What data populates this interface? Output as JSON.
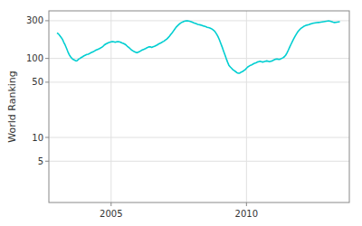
{
  "chart_data": {
    "type": "line",
    "ylabel": "World Ranking",
    "color": "#00CED1",
    "log": "y",
    "grid": true,
    "xlim": [
      2002.7,
      2013.8
    ],
    "xticks": [
      2005,
      2010
    ],
    "ylim": [
      1.5,
      400
    ],
    "yticks": [
      5,
      10,
      50,
      100,
      300
    ],
    "x": [
      2003.0,
      2003.05,
      2003.1,
      2003.15,
      2003.2,
      2003.25,
      2003.3,
      2003.35,
      2003.4,
      2003.45,
      2003.5,
      2003.55,
      2003.6,
      2003.65,
      2003.7,
      2003.75,
      2003.8,
      2003.85,
      2003.9,
      2003.95,
      2004.0,
      2004.05,
      2004.1,
      2004.15,
      2004.2,
      2004.25,
      2004.3,
      2004.35,
      2004.4,
      2004.45,
      2004.5,
      2004.55,
      2004.6,
      2004.65,
      2004.7,
      2004.75,
      2004.8,
      2004.85,
      2004.9,
      2004.95,
      2005.0,
      2005.05,
      2005.1,
      2005.15,
      2005.2,
      2005.25,
      2005.3,
      2005.35,
      2005.4,
      2005.45,
      2005.5,
      2005.55,
      2005.6,
      2005.65,
      2005.7,
      2005.75,
      2005.8,
      2005.85,
      2005.9,
      2005.95,
      2006.0,
      2006.05,
      2006.1,
      2006.15,
      2006.2,
      2006.25,
      2006.3,
      2006.35,
      2006.4,
      2006.45,
      2006.5,
      2006.55,
      2006.6,
      2006.65,
      2006.7,
      2006.75,
      2006.8,
      2006.85,
      2006.9,
      2006.95,
      2007.0,
      2007.05,
      2007.1,
      2007.15,
      2007.2,
      2007.25,
      2007.3,
      2007.35,
      2007.4,
      2007.45,
      2007.5,
      2007.55,
      2007.6,
      2007.65,
      2007.7,
      2007.75,
      2007.8,
      2007.85,
      2007.9,
      2007.95,
      2008.0,
      2008.05,
      2008.1,
      2008.15,
      2008.2,
      2008.25,
      2008.3,
      2008.35,
      2008.4,
      2008.45,
      2008.5,
      2008.55,
      2008.6,
      2008.65,
      2008.7,
      2008.75,
      2008.8,
      2008.85,
      2008.9,
      2008.95,
      2009.0,
      2009.05,
      2009.1,
      2009.15,
      2009.2,
      2009.25,
      2009.3,
      2009.35,
      2009.4,
      2009.45,
      2009.5,
      2009.55,
      2009.6,
      2009.65,
      2009.7,
      2009.75,
      2009.8,
      2009.85,
      2009.9,
      2009.95,
      2010.0,
      2010.05,
      2010.1,
      2010.15,
      2010.2,
      2010.25,
      2010.3,
      2010.35,
      2010.4,
      2010.45,
      2010.5,
      2010.55,
      2010.6,
      2010.65,
      2010.7,
      2010.75,
      2010.8,
      2010.85,
      2010.9,
      2010.95,
      2011.0,
      2011.05,
      2011.1,
      2011.15,
      2011.2,
      2011.25,
      2011.3,
      2011.35,
      2011.4,
      2011.45,
      2011.5,
      2011.55,
      2011.6,
      2011.65,
      2011.7,
      2011.75,
      2011.8,
      2011.85,
      2011.9,
      2011.95,
      2012.0,
      2012.05,
      2012.1,
      2012.15,
      2012.2,
      2012.25,
      2012.3,
      2012.35,
      2012.4,
      2012.45,
      2012.5,
      2012.55,
      2012.6,
      2012.65,
      2012.7,
      2012.75,
      2012.8,
      2012.85,
      2012.9,
      2012.95,
      2013.0,
      2013.05,
      2013.1,
      2013.15,
      2013.2,
      2013.25,
      2013.3,
      2013.35,
      2013.4,
      2013.45
    ],
    "values": [
      210,
      205,
      195,
      185,
      175,
      160,
      148,
      135,
      122,
      112,
      105,
      100,
      97,
      95,
      93,
      94,
      98,
      100,
      103,
      105,
      108,
      110,
      112,
      113,
      115,
      118,
      120,
      122,
      125,
      128,
      130,
      132,
      135,
      138,
      142,
      148,
      152,
      155,
      158,
      160,
      162,
      163,
      162,
      160,
      162,
      163,
      162,
      160,
      157,
      155,
      152,
      148,
      142,
      138,
      133,
      128,
      125,
      122,
      120,
      118,
      120,
      122,
      125,
      128,
      130,
      132,
      135,
      138,
      140,
      140,
      138,
      140,
      142,
      145,
      148,
      152,
      155,
      158,
      162,
      165,
      170,
      175,
      182,
      190,
      200,
      210,
      222,
      235,
      248,
      258,
      268,
      278,
      285,
      290,
      295,
      298,
      299,
      298,
      296,
      292,
      287,
      282,
      278,
      274,
      270,
      268,
      265,
      262,
      258,
      255,
      252,
      248,
      245,
      242,
      238,
      232,
      225,
      215,
      202,
      188,
      172,
      155,
      140,
      125,
      112,
      100,
      90,
      82,
      78,
      75,
      72,
      70,
      68,
      66,
      65,
      65,
      67,
      68,
      70,
      72,
      75,
      78,
      80,
      82,
      83,
      85,
      87,
      88,
      90,
      91,
      92,
      91,
      90,
      91,
      92,
      93,
      92,
      91,
      92,
      93,
      95,
      97,
      98,
      98,
      97,
      98,
      100,
      102,
      105,
      110,
      118,
      128,
      140,
      152,
      165,
      178,
      192,
      205,
      218,
      228,
      238,
      245,
      252,
      258,
      262,
      265,
      268,
      272,
      275,
      278,
      280,
      282,
      284,
      285,
      286,
      288,
      290,
      292,
      294,
      296,
      297,
      298,
      296,
      292,
      288,
      285,
      286,
      288,
      290,
      291
    ]
  }
}
